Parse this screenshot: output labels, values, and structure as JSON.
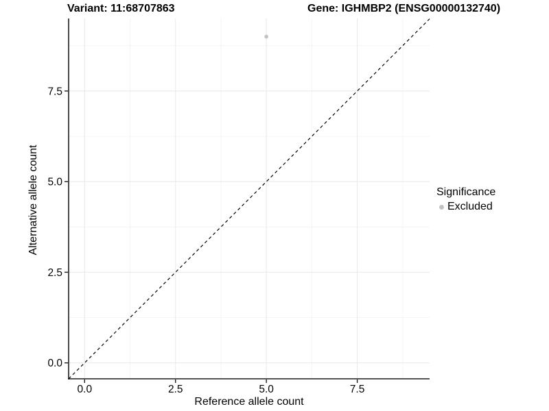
{
  "header": {
    "title_left": "Variant: 11:68707863",
    "title_right": "Gene: IGHMBP2 (ENSG00000132740)"
  },
  "chart_data": {
    "type": "scatter",
    "title": "Variant: 11:68707863 | Gene: IGHMBP2 (ENSG00000132740)",
    "xlabel": "Reference allele count",
    "ylabel": "Alternative allele count",
    "xlim": [
      -0.44,
      9.49
    ],
    "ylim": [
      -0.44,
      9.5
    ],
    "x_ticks": {
      "values": [
        0,
        2.5,
        5,
        7.5
      ],
      "labels": [
        "0.0",
        "2.5",
        "5.0",
        "7.5"
      ]
    },
    "y_ticks": {
      "values": [
        0,
        2.5,
        5,
        7.5
      ],
      "labels": [
        "0.0",
        "2.5",
        "5.0",
        "7.5"
      ]
    },
    "x_minor": [
      1.25,
      3.75,
      6.25,
      8.75
    ],
    "y_minor": [
      1.25,
      3.75,
      6.25,
      8.75
    ],
    "grid": "major and minor, light grey on white",
    "points": [
      {
        "x": 5,
        "y": 9,
        "significance": "Excluded"
      }
    ],
    "reference_line": {
      "equation": "y = x",
      "style": "dashed",
      "color": "#000000"
    },
    "legend": {
      "title": "Significance",
      "position": "right",
      "items": [
        {
          "label": "Excluded",
          "color": "#c2c2c2"
        }
      ]
    }
  },
  "colors": {
    "background": "#ffffff",
    "grid_major": "#e8e8e8",
    "grid_minor": "#f4f4f4",
    "axis_line": "#1a1a1a",
    "tick_mark": "#1a1a1a",
    "tick_label": "#000000",
    "point": "#c2c2c2",
    "diagonal": "#000000"
  }
}
